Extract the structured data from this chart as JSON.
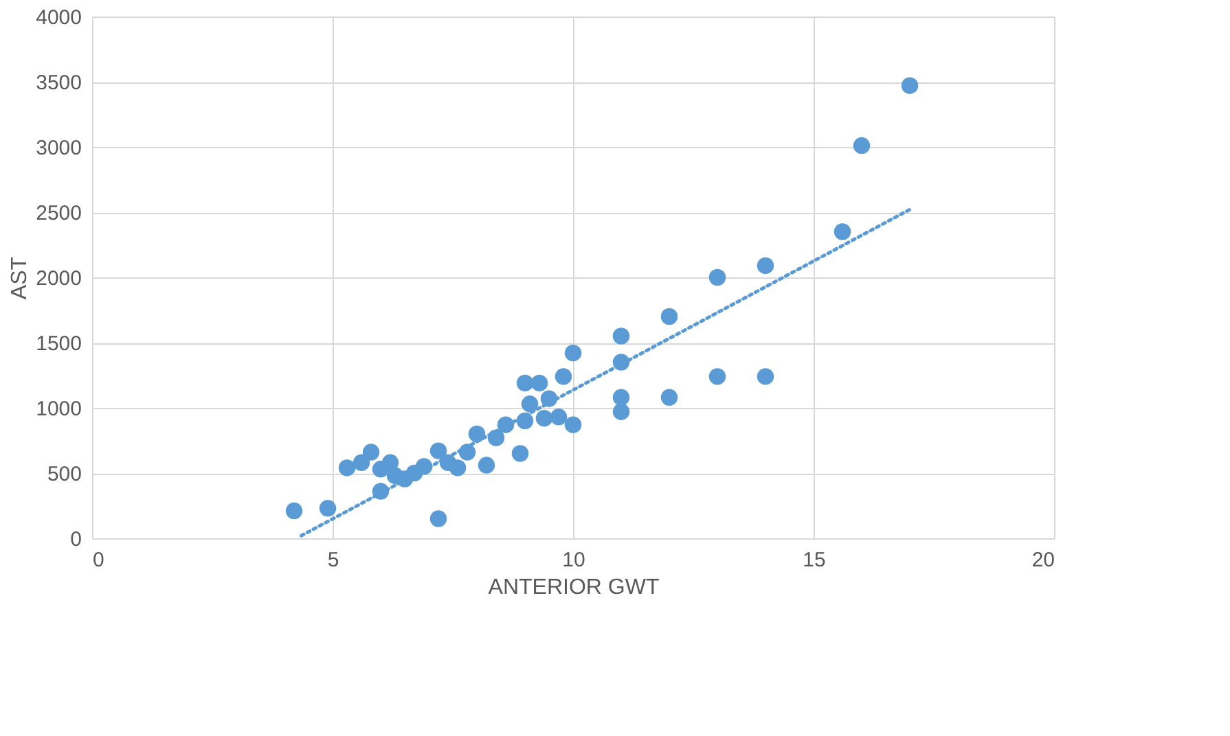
{
  "chart_data": {
    "type": "scatter",
    "xlabel": "ANTERIOR GWT",
    "ylabel": "AST",
    "xlim": [
      0,
      20
    ],
    "xticks": [
      0,
      5,
      10,
      15,
      20
    ],
    "ylim": [
      0,
      4000
    ],
    "yticks": [
      0,
      500,
      1000,
      1500,
      2000,
      2500,
      3000,
      3500,
      4000
    ],
    "grid": true,
    "marker": "circle",
    "series": [
      {
        "color": "#5b9bd5",
        "x": [
          4.2,
          4.9,
          5.3,
          5.6,
          5.8,
          6.0,
          6.0,
          6.2,
          6.3,
          6.5,
          6.7,
          6.9,
          7.2,
          7.2,
          7.4,
          7.6,
          7.8,
          8.0,
          8.2,
          8.4,
          8.6,
          8.9,
          9.0,
          9.1,
          9.0,
          9.3,
          9.4,
          9.5,
          9.7,
          9.8,
          10,
          10,
          11,
          11,
          11,
          11,
          12,
          12,
          13,
          13,
          14,
          14,
          15.6,
          16,
          17
        ],
        "values": [
          210,
          230,
          540,
          580,
          660,
          360,
          530,
          580,
          480,
          455,
          500,
          550,
          670,
          150,
          580,
          540,
          660,
          800,
          560,
          770,
          870,
          650,
          900,
          1030,
          1190,
          1190,
          920,
          1070,
          930,
          1240,
          870,
          1420,
          1550,
          1350,
          1080,
          970,
          1700,
          1080,
          2000,
          1240,
          2090,
          1240,
          2350,
          3010,
          3470
        ]
      },
      {
        "type": "line",
        "line_style": "dotted",
        "marker": "none",
        "color": "#5b9bd5",
        "x": [
          4.35,
          17.05
        ],
        "values": [
          20,
          2530
        ]
      }
    ]
  }
}
